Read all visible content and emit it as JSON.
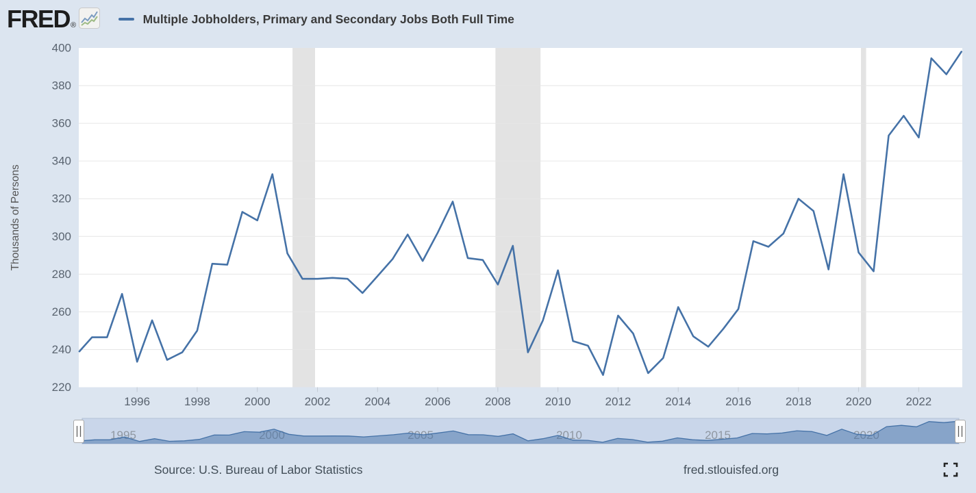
{
  "header": {
    "logo_text": "FRED",
    "logo_registered": "®",
    "legend_label": "Multiple Jobholders, Primary and Secondary Jobs Both Full Time"
  },
  "footer": {
    "source": "Source: U.S. Bureau of Labor Statistics",
    "site": "fred.stlouisfed.org"
  },
  "colors": {
    "series": "#4572a7",
    "page_bg": "#dce5f0",
    "plot_bg": "#ffffff",
    "gridline": "#e6e6e6",
    "recession_band": "#e3e3e3",
    "tick_label": "#5a6470",
    "axis_title": "#555555",
    "navigator_track": "#c9d6ea",
    "navigator_fill": "rgba(69,114,167,0.5)",
    "navigator_label": "#8f97a1"
  },
  "chart_data": {
    "type": "line",
    "title": "Multiple Jobholders, Primary and Secondary Jobs Both Full Time",
    "ylabel": "Thousands of Persons",
    "ylim": [
      220,
      400
    ],
    "y_ticks": [
      220,
      240,
      260,
      280,
      300,
      320,
      340,
      360,
      380,
      400
    ],
    "x_tick_years": [
      1996,
      1998,
      2000,
      2002,
      2004,
      2006,
      2008,
      2010,
      2012,
      2014,
      2016,
      2018,
      2020,
      2022
    ],
    "grid": true,
    "legend_position": "top",
    "recessions": [
      [
        2001.17,
        2001.92
      ],
      [
        2007.92,
        2009.42
      ],
      [
        2020.08,
        2020.25
      ]
    ],
    "navigator_years": [
      1995,
      2000,
      2005,
      2010,
      2015,
      2020
    ],
    "x": [
      1994.08,
      1994.5,
      1995.0,
      1995.5,
      1996.0,
      1996.5,
      1997.0,
      1997.5,
      1998.0,
      1998.5,
      1999.0,
      1999.5,
      2000.0,
      2000.5,
      2001.0,
      2001.5,
      2002.0,
      2002.5,
      2003.0,
      2003.5,
      2004.0,
      2004.5,
      2005.0,
      2005.5,
      2006.0,
      2006.5,
      2007.0,
      2007.5,
      2008.0,
      2008.5,
      2009.0,
      2009.5,
      2010.0,
      2010.5,
      2011.0,
      2011.5,
      2012.0,
      2012.5,
      2013.0,
      2013.5,
      2014.0,
      2014.5,
      2015.0,
      2015.5,
      2016.0,
      2016.5,
      2017.0,
      2017.5,
      2018.0,
      2018.5,
      2019.0,
      2019.5,
      2020.0,
      2020.5,
      2021.0,
      2021.5,
      2022.0,
      2022.42,
      2022.92,
      2023.42
    ],
    "values": [
      239,
      246.5,
      246.5,
      269.5,
      233.5,
      255.5,
      234.5,
      238.5,
      250,
      285.5,
      285,
      313,
      308.5,
      333,
      291,
      277.5,
      277.5,
      278,
      277.5,
      270,
      279,
      288,
      301,
      287,
      302,
      318.5,
      288.5,
      287.5,
      274.5,
      295,
      238.5,
      255.5,
      282,
      244.5,
      242,
      226.5,
      258,
      248.5,
      227.5,
      235.5,
      262.5,
      247,
      241.5,
      251,
      261.5,
      297.5,
      294.5,
      301.5,
      320,
      313.5,
      282.5,
      333,
      291.5,
      281.5,
      353.5,
      364,
      352.5,
      394.5,
      386,
      398
    ]
  }
}
